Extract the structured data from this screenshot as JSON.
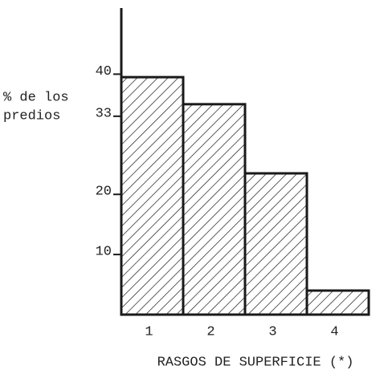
{
  "chart_data": {
    "type": "bar",
    "ylabel": [
      "% de los",
      "predios"
    ],
    "xlabel": "RASGOS DE SUPERFICIE (*)",
    "categories": [
      "1",
      "2",
      "3",
      "4"
    ],
    "values": [
      39.5,
      35,
      23.5,
      4
    ],
    "color": "#1a1a1a",
    "hatch": true,
    "ylim": [
      0,
      51
    ],
    "yticks": [
      10,
      20,
      33,
      40
    ],
    "grid": false
  }
}
